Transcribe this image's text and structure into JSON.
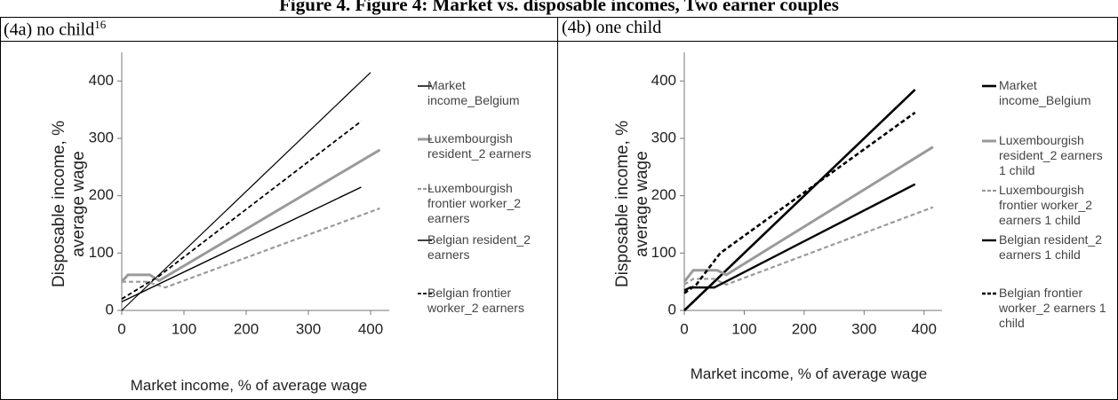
{
  "title": "Figure 4. Figure 4: Market vs. disposable incomes, Two earner couples",
  "panels": [
    {
      "label": "(4a) no child",
      "footnote": "16"
    },
    {
      "label": "(4b) one child"
    }
  ],
  "chart_data": [
    {
      "type": "line",
      "x_label": "Market income, % of average wage",
      "y_label": "Disposable income, % average wage",
      "xlim": [
        0,
        430
      ],
      "ylim": [
        0,
        450
      ],
      "xticks": [
        0,
        100,
        200,
        300,
        400
      ],
      "yticks": [
        0,
        100,
        200,
        300,
        400
      ],
      "series": [
        {
          "name": "Market income_Belgium",
          "color": "#000000",
          "width": 1.2,
          "dash": false,
          "x": [
            0,
            400
          ],
          "values": [
            0,
            415
          ]
        },
        {
          "name": "Luxembourgish resident_2 earners",
          "color": "#9a9a9a",
          "width": 3,
          "dash": false,
          "x": [
            0,
            10,
            45,
            60,
            415
          ],
          "values": [
            50,
            62,
            62,
            52,
            280
          ]
        },
        {
          "name": "Luxembourgish frontier worker_2 earners",
          "color": "#9a9a9a",
          "width": 2.2,
          "dash": true,
          "x": [
            0,
            15,
            40,
            70,
            415
          ],
          "values": [
            50,
            50,
            50,
            40,
            178
          ]
        },
        {
          "name": "Belgian resident_2 earners",
          "color": "#000000",
          "width": 1.4,
          "dash": false,
          "x": [
            0,
            385
          ],
          "values": [
            15,
            215
          ]
        },
        {
          "name": "Belgian frontier worker_2 earners",
          "color": "#000000",
          "width": 1.8,
          "dash": true,
          "x": [
            0,
            30,
            60,
            385
          ],
          "values": [
            20,
            40,
            60,
            330
          ]
        }
      ]
    },
    {
      "type": "line",
      "x_label": "Market income, % of average wage",
      "y_label": "Disposable income, % average wage",
      "xlim": [
        0,
        430
      ],
      "ylim": [
        0,
        450
      ],
      "xticks": [
        0,
        100,
        200,
        300,
        400
      ],
      "yticks": [
        0,
        100,
        200,
        300,
        400
      ],
      "series": [
        {
          "name": "Market income_Belgium",
          "color": "#000000",
          "width": 2.6,
          "dash": false,
          "x": [
            0,
            385
          ],
          "values": [
            0,
            385
          ]
        },
        {
          "name": "Luxembourgish resident_2 earners 1 child",
          "color": "#9a9a9a",
          "width": 3,
          "dash": false,
          "x": [
            0,
            15,
            55,
            70,
            415
          ],
          "values": [
            50,
            70,
            70,
            62,
            285
          ]
        },
        {
          "name": "Luxembourgish frontier worker_2 earners  1 child",
          "color": "#9a9a9a",
          "width": 2.2,
          "dash": true,
          "x": [
            0,
            15,
            50,
            70,
            415
          ],
          "values": [
            45,
            55,
            55,
            45,
            180
          ]
        },
        {
          "name": "Belgian resident_2 earners  1 child",
          "color": "#000000",
          "width": 2.4,
          "dash": false,
          "x": [
            0,
            10,
            50,
            385
          ],
          "values": [
            35,
            40,
            40,
            220
          ]
        },
        {
          "name": "Belgian frontier worker_2 earners 1 child",
          "color": "#000000",
          "width": 2.6,
          "dash": true,
          "x": [
            0,
            20,
            60,
            385
          ],
          "values": [
            30,
            45,
            100,
            345
          ]
        }
      ]
    }
  ]
}
